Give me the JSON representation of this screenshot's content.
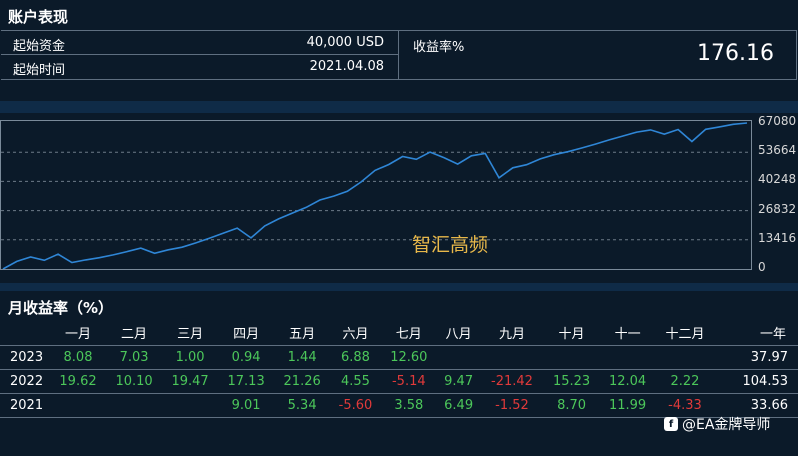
{
  "account": {
    "title": "账户表现",
    "start_funds_label": "起始资金",
    "start_funds_value": "40,000 USD",
    "start_time_label": "起始时间",
    "start_time_value": "2021.04.08",
    "return_label": "收益率%",
    "return_value": "176.16"
  },
  "chart": {
    "watermark": "智汇高频",
    "line_color": "#2f86d6"
  },
  "chart_data": {
    "type": "line",
    "title": "",
    "xlabel": "",
    "ylabel": "",
    "ylim": [
      0,
      67080
    ],
    "yticks": [
      "67080",
      "53664",
      "40248",
      "26832",
      "13416",
      "0"
    ],
    "grid": true,
    "series": [
      {
        "values": [
          0,
          3500,
          5500,
          4000,
          6800,
          3000,
          4200,
          5200,
          6500,
          8000,
          9600,
          7200,
          8800,
          10000,
          12000,
          14200,
          16500,
          18800,
          14300,
          19800,
          23000,
          25700,
          28300,
          31700,
          33500,
          35700,
          40000,
          45300,
          48000,
          51700,
          50400,
          53700,
          51200,
          48200,
          52000,
          53100,
          41900,
          46500,
          47900,
          50600,
          52500,
          53900,
          55600,
          57400,
          59300,
          61100,
          62900,
          63900,
          62000,
          64100,
          58600,
          64200,
          65300,
          66500,
          67080
        ]
      }
    ]
  },
  "monthly": {
    "title": "月收益率（%）",
    "headers": [
      "",
      "一月",
      "二月",
      "三月",
      "四月",
      "五月",
      "六月",
      "七月",
      "八月",
      "九月",
      "十月",
      "十一",
      "十二月",
      "一年"
    ],
    "rows": [
      {
        "year": "2023",
        "cells": [
          "8.08",
          "7.03",
          "1.00",
          "0.94",
          "1.44",
          "6.88",
          "12.60",
          "",
          "",
          "",
          "",
          ""
        ],
        "total": "37.97"
      },
      {
        "year": "2022",
        "cells": [
          "19.62",
          "10.10",
          "19.47",
          "17.13",
          "21.26",
          "4.55",
          "-5.14",
          "9.47",
          "-21.42",
          "15.23",
          "12.04",
          "2.22"
        ],
        "total": "104.53"
      },
      {
        "year": "2021",
        "cells": [
          "",
          "",
          "",
          "9.01",
          "5.34",
          "-5.60",
          "3.58",
          "6.49",
          "-1.52",
          "8.70",
          "11.99",
          "-4.33"
        ],
        "total": "33.66"
      }
    ]
  },
  "brand": {
    "icon_name": "app-logo-icon",
    "text": "@EA金牌导师"
  }
}
